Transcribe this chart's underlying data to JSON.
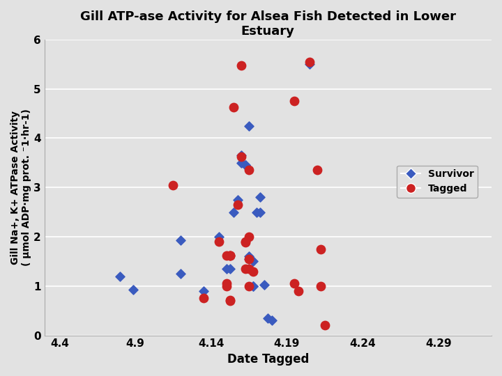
{
  "title": "Gill ATP-ase Activity for Alsea Fish Detected in Lower\nEstuary",
  "xlabel": "Date Tagged",
  "ylabel": "Gill Na+, K+ ATPase Activity\n( μmol ADP·mg prot. ⁻1·hr-1)",
  "ylim": [
    0,
    6
  ],
  "xtick_labels": [
    "4.4",
    "4.9",
    "4.14",
    "4.19",
    "4.24",
    "4.29"
  ],
  "yticks": [
    0,
    1,
    2,
    3,
    4,
    5,
    6
  ],
  "background_color": "#e2e2e2",
  "plot_bg_color": "#e2e2e2",
  "survivor_color": "#3a5bbf",
  "tagged_color": "#cc2222",
  "survivor_data": [
    [
      0.8,
      1.2
    ],
    [
      0.97,
      0.93
    ],
    [
      1.6,
      1.25
    ],
    [
      1.6,
      1.93
    ],
    [
      1.9,
      0.9
    ],
    [
      2.1,
      2.0
    ],
    [
      2.2,
      1.35
    ],
    [
      2.25,
      1.35
    ],
    [
      2.3,
      2.5
    ],
    [
      2.35,
      2.75
    ],
    [
      2.4,
      3.65
    ],
    [
      2.4,
      3.5
    ],
    [
      2.45,
      3.45
    ],
    [
      2.45,
      3.45
    ],
    [
      2.5,
      4.25
    ],
    [
      2.5,
      1.6
    ],
    [
      2.5,
      1.55
    ],
    [
      2.55,
      1.5
    ],
    [
      2.55,
      1.0
    ],
    [
      2.55,
      1.0
    ],
    [
      2.6,
      2.5
    ],
    [
      2.65,
      2.8
    ],
    [
      2.65,
      2.5
    ],
    [
      2.7,
      1.02
    ],
    [
      2.75,
      0.35
    ],
    [
      2.8,
      0.3
    ],
    [
      3.3,
      5.5
    ]
  ],
  "tagged_data": [
    [
      1.5,
      3.05
    ],
    [
      1.9,
      0.75
    ],
    [
      2.1,
      1.9
    ],
    [
      2.2,
      1.0
    ],
    [
      2.2,
      1.05
    ],
    [
      2.2,
      1.62
    ],
    [
      2.25,
      1.62
    ],
    [
      2.25,
      1.62
    ],
    [
      2.25,
      1.62
    ],
    [
      2.25,
      0.72
    ],
    [
      2.25,
      0.7
    ],
    [
      2.3,
      4.62
    ],
    [
      2.35,
      2.65
    ],
    [
      2.4,
      3.62
    ],
    [
      2.4,
      5.48
    ],
    [
      2.45,
      1.9
    ],
    [
      2.45,
      1.88
    ],
    [
      2.45,
      1.35
    ],
    [
      2.5,
      3.35
    ],
    [
      2.5,
      2.0
    ],
    [
      2.5,
      1.55
    ],
    [
      2.5,
      1.35
    ],
    [
      2.5,
      1.0
    ],
    [
      2.55,
      1.3
    ],
    [
      3.1,
      4.75
    ],
    [
      3.1,
      1.05
    ],
    [
      3.15,
      0.9
    ],
    [
      3.3,
      5.55
    ],
    [
      3.4,
      3.35
    ],
    [
      3.45,
      1.75
    ],
    [
      3.45,
      1.0
    ],
    [
      3.5,
      0.2
    ]
  ]
}
